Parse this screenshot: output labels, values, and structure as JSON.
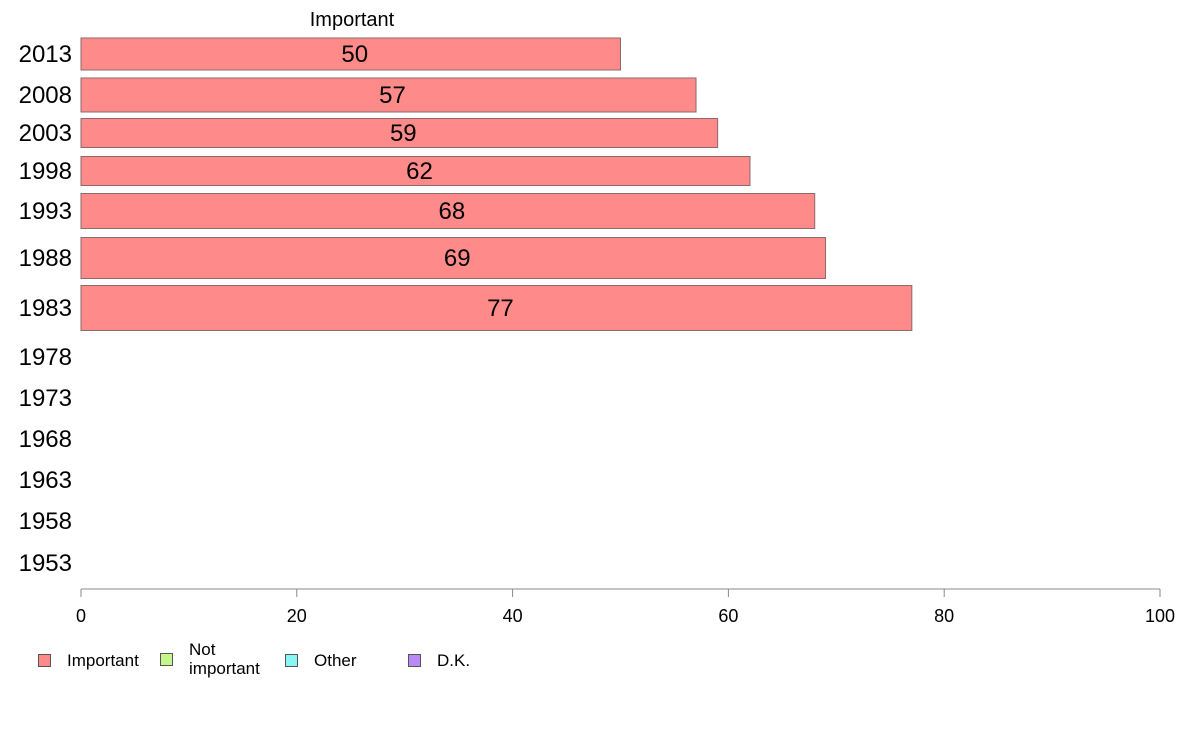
{
  "chart_data": {
    "type": "bar",
    "orientation": "horizontal",
    "series_title": "Important",
    "categories": [
      "2013",
      "2008",
      "2003",
      "1998",
      "1993",
      "1988",
      "1983",
      "1978",
      "1973",
      "1968",
      "1963",
      "1958",
      "1953"
    ],
    "series": [
      {
        "name": "Important",
        "values": [
          50,
          57,
          59,
          62,
          68,
          69,
          77,
          null,
          null,
          null,
          null,
          null,
          null
        ],
        "color": "#ff8a8a"
      }
    ],
    "xlim": [
      0,
      100
    ],
    "xticks": [
      "0",
      "20",
      "40",
      "60",
      "80",
      "100"
    ],
    "grid": false,
    "legend_position": "bottom-left",
    "legend": [
      {
        "label": "Important",
        "color": "#ff8a8a"
      },
      {
        "label": "Not important",
        "color": "#c6f58a"
      },
      {
        "label": "Other",
        "color": "#8af5f5"
      },
      {
        "label": "D.K.",
        "color": "#b98af5"
      }
    ]
  }
}
